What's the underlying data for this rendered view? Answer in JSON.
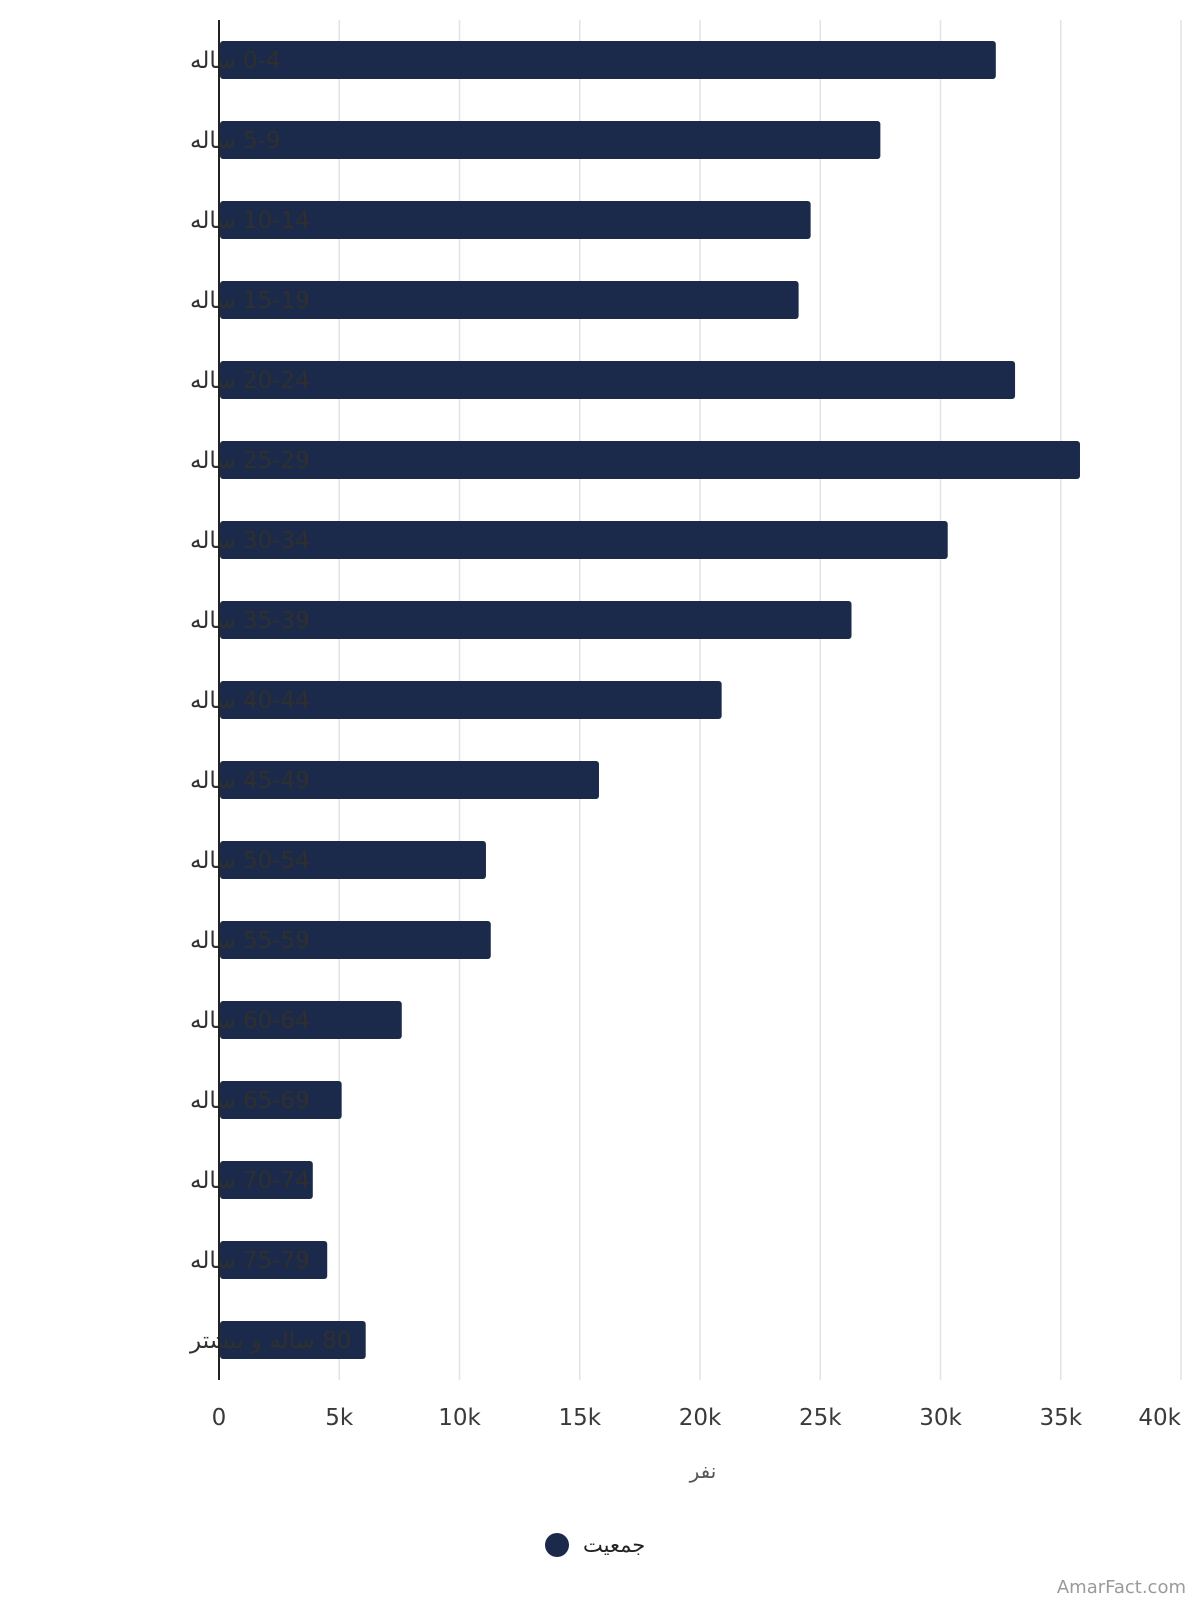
{
  "chart_data": {
    "type": "bar",
    "orientation": "horizontal",
    "categories": [
      "0-4 ساله",
      "5-9 ساله",
      "10-14 ساله",
      "15-19 ساله",
      "20-24 ساله",
      "25-29 ساله",
      "30-34 ساله",
      "35-39 ساله",
      "40-44 ساله",
      "45-49 ساله",
      "50-54 ساله",
      "55-59 ساله",
      "60-64 ساله",
      "65-69 ساله",
      "70-74 ساله",
      "75-79 ساله",
      "80 ساله و بیشتر"
    ],
    "series": [
      {
        "name": "جمعیت",
        "color": "#1b2a4a",
        "values": [
          32300,
          27500,
          24600,
          24100,
          33100,
          35800,
          30300,
          26300,
          20900,
          15800,
          11100,
          11300,
          7600,
          5100,
          3900,
          4500,
          6100
        ]
      }
    ],
    "xlabel": "نفر",
    "ylabel": "",
    "xlim": [
      0,
      40000
    ],
    "x_ticks": [
      "0",
      "5k",
      "10k",
      "15k",
      "20k",
      "25k",
      "30k",
      "35k",
      "40k"
    ],
    "grid": "vertical",
    "legend_position": "bottom-center"
  },
  "watermark": "AmarFact.com",
  "colors": {
    "bar": "#1b2a4a",
    "grid": "#e3e3e3",
    "axis": "#222222"
  }
}
